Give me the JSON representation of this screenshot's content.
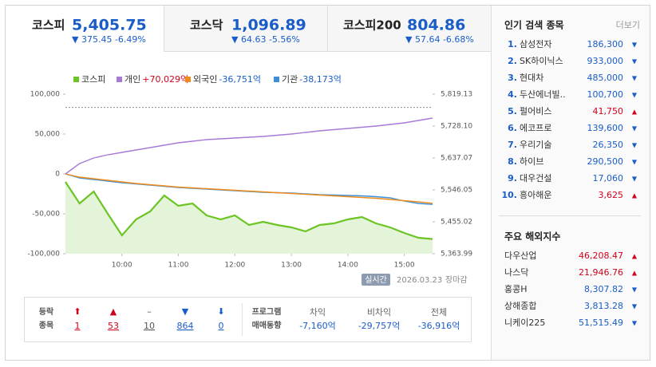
{
  "tabs": [
    {
      "name": "코스피",
      "value": "5,405.75",
      "change": "▼ 375.45 -6.49%"
    },
    {
      "name": "코스닥",
      "value": "1,096.89",
      "change": "▼ 64.63 -5.56%"
    },
    {
      "name": "코스피200",
      "value": "804.86",
      "change": "▼ 57.64 -6.68%"
    }
  ],
  "chart": {
    "type": "line",
    "x": [
      9,
      9.25,
      9.5,
      9.75,
      10,
      10.25,
      10.5,
      10.75,
      11,
      11.25,
      11.5,
      11.75,
      12,
      12.25,
      12.5,
      12.75,
      13,
      13.25,
      13.5,
      13.75,
      14,
      14.25,
      14.5,
      14.75,
      15,
      15.25,
      15.5
    ],
    "xlim": [
      9,
      15.5
    ],
    "xticks": [
      {
        "value": 10,
        "label": "10:00"
      },
      {
        "value": 11,
        "label": "11:00"
      },
      {
        "value": 12,
        "label": "12:00"
      },
      {
        "value": 13,
        "label": "13:00"
      },
      {
        "value": 14,
        "label": "14:00"
      },
      {
        "value": 15,
        "label": "15:00"
      }
    ],
    "ylim": [
      -100000,
      100000
    ],
    "yticks": [
      {
        "value": 100000,
        "label": "100,000"
      },
      {
        "value": 50000,
        "label": "50,000"
      },
      0,
      {
        "value": -50000,
        "label": "-50,000"
      },
      {
        "value": -100000,
        "label": "-100,000"
      }
    ],
    "y2lim": [
      5363.99,
      5819.13
    ],
    "y2ticks": [
      {
        "value": 5819.13,
        "label": "5,819.13"
      },
      {
        "value": 5728.1,
        "label": "5,728.10"
      },
      {
        "value": 5637.07,
        "label": "5,637.07"
      },
      {
        "value": 5546.05,
        "label": "5,546.05"
      },
      {
        "value": 5455.02,
        "label": "5,455.02"
      },
      {
        "value": 5363.99,
        "label": "5,363.99"
      }
    ],
    "reference": 5781.2,
    "series": [
      {
        "name": "코스피",
        "color": "#6cc425",
        "axis": "y2",
        "area": true,
        "values": [
          5568.8,
          5507.4,
          5541.5,
          5477.8,
          5416.3,
          5461.8,
          5484.6,
          5530.1,
          5500.5,
          5507.4,
          5473.2,
          5461.8,
          5473.2,
          5445.9,
          5455.0,
          5445.9,
          5439.1,
          5427.7,
          5445.9,
          5450.5,
          5461.8,
          5468.7,
          5450.5,
          5439.1,
          5423.2,
          5409.5,
          5405.75
        ]
      },
      {
        "name": "개인",
        "label": "+70,029억",
        "label_color": "#d0021b",
        "color": "#a77ad6",
        "values": [
          0,
          13000,
          20000,
          24000,
          27000,
          30000,
          33000,
          36000,
          39000,
          41000,
          43000,
          44000,
          45000,
          46000,
          47000,
          48500,
          50000,
          52000,
          54000,
          55500,
          57000,
          58500,
          60000,
          62000,
          64000,
          67000,
          70029
        ]
      },
      {
        "name": "외국인",
        "label": "-36,751억",
        "label_color": "#1a5dc8",
        "color": "#f08c1c",
        "values": [
          0,
          -4000,
          -6000,
          -8000,
          -10000,
          -12000,
          -13500,
          -15000,
          -16500,
          -17500,
          -18500,
          -19500,
          -20500,
          -21500,
          -22500,
          -23500,
          -24500,
          -25500,
          -26500,
          -27500,
          -28500,
          -29500,
          -30500,
          -32000,
          -33500,
          -35000,
          -36751
        ]
      },
      {
        "name": "기관",
        "label": "-38,173억",
        "label_color": "#1a5dc8",
        "color": "#3c8fd8",
        "values": [
          0,
          -5000,
          -7000,
          -9000,
          -11000,
          -12500,
          -14000,
          -15500,
          -17000,
          -18000,
          -19000,
          -20000,
          -21000,
          -22000,
          -23000,
          -23500,
          -24000,
          -25000,
          -26000,
          -26500,
          -27000,
          -27500,
          -28500,
          -30000,
          -34000,
          -37000,
          -38173
        ]
      }
    ]
  },
  "status": {
    "badge": "실시간",
    "date": "2026.03.23",
    "state": "장마감"
  },
  "breadth": {
    "title": [
      "등락",
      "종목"
    ],
    "items": [
      {
        "icon": "⬆",
        "count": "1",
        "color": "#d0021b"
      },
      {
        "icon": "▲",
        "count": "53",
        "color": "#d0021b"
      },
      {
        "icon": "–",
        "count": "10",
        "color": "#555555"
      },
      {
        "icon": "▼",
        "count": "864",
        "color": "#1a5dc8"
      },
      {
        "icon": "⬇",
        "count": "0",
        "color": "#1a5dc8"
      }
    ]
  },
  "program": {
    "title": [
      "프로그램",
      "매매동향"
    ],
    "columns": [
      {
        "label": "차익",
        "value": "-7,160억"
      },
      {
        "label": "비차익",
        "value": "-29,757억"
      },
      {
        "label": "전체",
        "value": "-36,916억"
      }
    ]
  },
  "popular": {
    "title": "인기 검색 종목",
    "more": "더보기",
    "items": [
      {
        "rank": "1.",
        "name": "삼성전자",
        "price": "186,300",
        "dir": "▼"
      },
      {
        "rank": "2.",
        "name": "SK하이닉스",
        "price": "933,000",
        "dir": "▼"
      },
      {
        "rank": "3.",
        "name": "현대차",
        "price": "485,000",
        "dir": "▼"
      },
      {
        "rank": "4.",
        "name": "두산에너빌..",
        "price": "100,700",
        "dir": "▼"
      },
      {
        "rank": "5.",
        "name": "펄어비스",
        "price": "41,750",
        "dir": "▲"
      },
      {
        "rank": "6.",
        "name": "에코프로",
        "price": "139,600",
        "dir": "▼"
      },
      {
        "rank": "7.",
        "name": "우리기술",
        "price": "26,350",
        "dir": "▼"
      },
      {
        "rank": "8.",
        "name": "하이브",
        "price": "290,500",
        "dir": "▼"
      },
      {
        "rank": "9.",
        "name": "대우건설",
        "price": "17,060",
        "dir": "▼"
      },
      {
        "rank": "10.",
        "name": "흥아해운",
        "price": "3,625",
        "dir": "▲"
      }
    ]
  },
  "overseas": {
    "title": "주요 해외지수",
    "items": [
      {
        "name": "다우산업",
        "value": "46,208.47",
        "dir": "▲"
      },
      {
        "name": "나스닥",
        "value": "21,946.76",
        "dir": "▲"
      },
      {
        "name": "홍콩H",
        "value": "8,307.82",
        "dir": "▼"
      },
      {
        "name": "상해종합",
        "value": "3,813.28",
        "dir": "▼"
      },
      {
        "name": "니케이225",
        "value": "51,515.49",
        "dir": "▼"
      }
    ]
  }
}
